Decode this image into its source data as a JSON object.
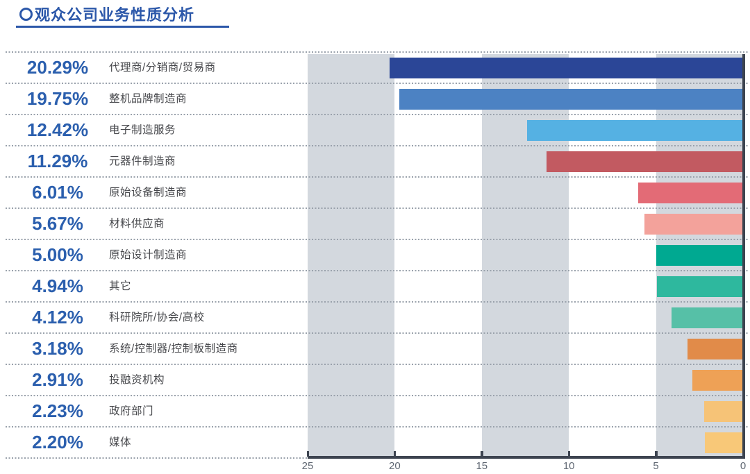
{
  "header": {
    "title": "观众公司业务性质分析"
  },
  "chart_data": {
    "type": "bar",
    "orientation": "horizontal",
    "title": "观众公司业务性质分析",
    "xlabel": "",
    "ylabel": "",
    "value_axis": {
      "min": 0,
      "max": 25,
      "direction": "right-to-left",
      "ticks": [
        25,
        20,
        15,
        10,
        5,
        0
      ]
    },
    "tick_labels": [
      "25",
      "20",
      "15",
      "10",
      "5",
      "0"
    ],
    "grid_bands": [
      [
        25,
        20
      ],
      [
        15,
        10
      ],
      [
        5,
        0
      ]
    ],
    "rows": [
      {
        "percent_label": "20.29%",
        "value": 20.29,
        "category": "代理商/分销商/贸易商",
        "color": "#2b4697"
      },
      {
        "percent_label": "19.75%",
        "value": 19.75,
        "category": "整机品牌制造商",
        "color": "#4c82c3"
      },
      {
        "percent_label": "12.42%",
        "value": 12.42,
        "category": "电子制造服务",
        "color": "#55b1e3"
      },
      {
        "percent_label": "11.29%",
        "value": 11.29,
        "category": "元器件制造商",
        "color": "#c25a61"
      },
      {
        "percent_label": "6.01%",
        "value": 6.01,
        "category": "原始设备制造商",
        "color": "#e36b76"
      },
      {
        "percent_label": "5.67%",
        "value": 5.67,
        "category": "材料供应商",
        "color": "#f3a29b"
      },
      {
        "percent_label": "5.00%",
        "value": 5.0,
        "category": "原始设计制造商",
        "color": "#00a991"
      },
      {
        "percent_label": "4.94%",
        "value": 4.94,
        "category": "其它",
        "color": "#2eb89e"
      },
      {
        "percent_label": "4.12%",
        "value": 4.12,
        "category": "科研院所/协会/高校",
        "color": "#56c0a7"
      },
      {
        "percent_label": "3.18%",
        "value": 3.18,
        "category": "系统/控制器/控制板制造商",
        "color": "#e18b49"
      },
      {
        "percent_label": "2.91%",
        "value": 2.91,
        "category": "投融资机构",
        "color": "#eea156"
      },
      {
        "percent_label": "2.23%",
        "value": 2.23,
        "category": "政府部门",
        "color": "#f6c377"
      },
      {
        "percent_label": "2.20%",
        "value": 2.2,
        "category": "媒体",
        "color": "#f8c878"
      }
    ]
  },
  "style": {
    "accent": "#2b57a9",
    "percent_color": "#2b5fae",
    "category_color": "#47484c",
    "band_color": "#d3d8de",
    "dot_color": "#99a1ab",
    "axis_color": "#3d4450",
    "tick_label_color": "#606873"
  }
}
